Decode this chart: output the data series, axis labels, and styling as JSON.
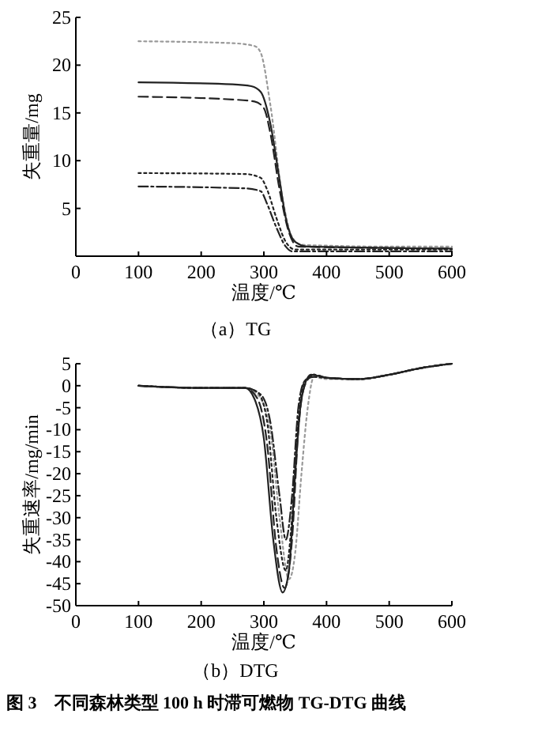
{
  "chart_data": [
    {
      "type": "line",
      "title": "（a）TG",
      "xlabel": "温度/℃",
      "ylabel": "失重量/mg",
      "xlim": [
        0,
        600
      ],
      "xticks": [
        0,
        100,
        200,
        300,
        400,
        500,
        600
      ],
      "ylim": [
        0,
        25
      ],
      "yticks": [
        5,
        10,
        15,
        20,
        25
      ],
      "grid": false,
      "series": [
        {
          "color": "#999999",
          "line_style": "dotted",
          "x": [
            100,
            250,
            285,
            295,
            310,
            330,
            345,
            360,
            400,
            500,
            600
          ],
          "values": [
            22.5,
            22.3,
            22,
            21.3,
            16,
            6,
            2,
            1.2,
            1.1,
            1.0,
            1.0
          ]
        },
        {
          "color": "#222222",
          "line_style": "solid",
          "x": [
            100,
            250,
            280,
            295,
            310,
            325,
            335,
            350,
            370,
            600
          ],
          "values": [
            18.2,
            18,
            17.8,
            17.2,
            14,
            8,
            4,
            1.5,
            1.0,
            0.8
          ]
        },
        {
          "color": "#222222",
          "line_style": "dashed",
          "x": [
            100,
            250,
            285,
            300,
            310,
            325,
            340,
            355,
            600
          ],
          "values": [
            16.7,
            16.4,
            16.2,
            15.5,
            13,
            7,
            2.5,
            1.0,
            0.8
          ]
        },
        {
          "color": "#222222",
          "line_style": "dotted",
          "x": [
            100,
            270,
            295,
            305,
            320,
            335,
            350,
            600
          ],
          "values": [
            8.7,
            8.6,
            8.2,
            7,
            4,
            1.5,
            0.7,
            0.7
          ]
        },
        {
          "color": "#222222",
          "line_style": "dashdot",
          "x": [
            100,
            270,
            295,
            305,
            320,
            335,
            345,
            600
          ],
          "values": [
            7.3,
            7.1,
            6.8,
            5.5,
            3,
            1,
            0.5,
            0.5
          ]
        }
      ]
    },
    {
      "type": "line",
      "title": "（b）DTG",
      "xlabel": "温度/℃",
      "ylabel": "失重速率/mg/min",
      "xlim": [
        0,
        600
      ],
      "xticks": [
        0,
        100,
        200,
        300,
        400,
        500,
        600
      ],
      "ylim": [
        -50,
        5
      ],
      "yticks": [
        -50,
        -45,
        -40,
        -35,
        -30,
        -25,
        -20,
        -15,
        -10,
        -5,
        0,
        5
      ],
      "grid": false,
      "annotations": [
        "图 3　不同森林类型 100 h 时滞可燃物 TG-DTG 曲线"
      ],
      "series": [
        {
          "color": "#999999",
          "line_style": "dotted",
          "x": [
            100,
            200,
            270,
            290,
            310,
            325,
            340,
            350,
            360,
            370,
            380,
            400,
            450,
            500,
            550,
            600
          ],
          "values": [
            0,
            -0.5,
            -0.5,
            -2,
            -10,
            -30,
            -44,
            -38,
            -20,
            -5,
            2,
            1.5,
            1.5,
            2.5,
            4,
            5
          ]
        },
        {
          "color": "#222222",
          "line_style": "solid",
          "x": [
            100,
            200,
            270,
            285,
            300,
            315,
            330,
            340,
            350,
            360,
            375,
            400,
            450,
            500,
            550,
            600
          ],
          "values": [
            0,
            -0.5,
            -0.5,
            -3,
            -12,
            -35,
            -47,
            -42,
            -20,
            -3,
            2.5,
            1.8,
            1.5,
            2.5,
            4,
            5
          ]
        },
        {
          "color": "#222222",
          "line_style": "dashed",
          "x": [
            100,
            200,
            270,
            290,
            305,
            320,
            333,
            345,
            355,
            365,
            380,
            400,
            450,
            500,
            550,
            600
          ],
          "values": [
            0,
            -0.5,
            -0.5,
            -3,
            -13,
            -37,
            -46,
            -35,
            -10,
            0,
            2.5,
            1.8,
            1.5,
            2.5,
            4,
            5
          ]
        },
        {
          "color": "#222222",
          "line_style": "dotted",
          "x": [
            100,
            200,
            270,
            290,
            305,
            320,
            335,
            345,
            355,
            365,
            380,
            400,
            450,
            500,
            550,
            600
          ],
          "values": [
            0,
            -0.5,
            -0.5,
            -1.5,
            -8,
            -30,
            -42,
            -30,
            -8,
            1,
            2.5,
            1.8,
            1.5,
            2.5,
            4,
            5
          ]
        },
        {
          "color": "#222222",
          "line_style": "dashdot",
          "x": [
            100,
            200,
            270,
            295,
            310,
            325,
            335,
            345,
            355,
            365,
            380,
            400,
            450,
            500,
            550,
            600
          ],
          "values": [
            0,
            -0.5,
            -0.5,
            -2,
            -8,
            -25,
            -35,
            -25,
            -5,
            1,
            2,
            1.8,
            1.5,
            2.5,
            4,
            5
          ]
        }
      ]
    }
  ]
}
